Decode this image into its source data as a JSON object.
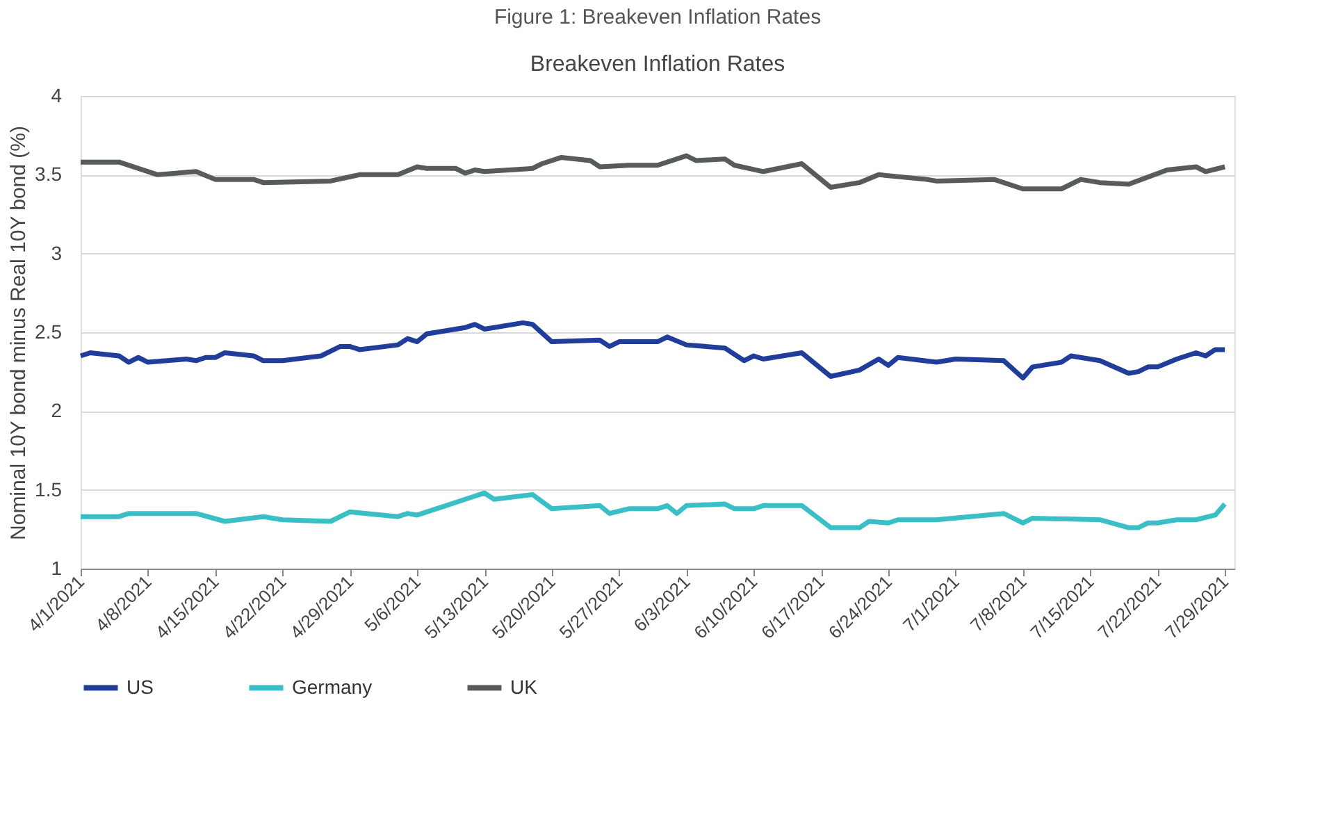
{
  "chart_data": {
    "type": "line",
    "title": "Figure 1: Breakeven Inflation Rates",
    "subtitle": "Breakeven Inflation Rates",
    "ylabel": "Nominal 10Y bond minus Real 10Y bond (%)",
    "ylim": [
      1,
      4
    ],
    "yticks": [
      1,
      1.5,
      2,
      2.5,
      3,
      3.5,
      4
    ],
    "xlim": [
      "2021-04-01",
      "2021-07-30"
    ],
    "xticks": [
      {
        "value": "2021-04-01",
        "label": "4/1/2021"
      },
      {
        "value": "2021-04-08",
        "label": "4/8/2021"
      },
      {
        "value": "2021-04-15",
        "label": "4/15/2021"
      },
      {
        "value": "2021-04-22",
        "label": "4/22/2021"
      },
      {
        "value": "2021-04-29",
        "label": "4/29/2021"
      },
      {
        "value": "2021-05-06",
        "label": "5/6/2021"
      },
      {
        "value": "2021-05-13",
        "label": "5/13/2021"
      },
      {
        "value": "2021-05-20",
        "label": "5/20/2021"
      },
      {
        "value": "2021-05-27",
        "label": "5/27/2021"
      },
      {
        "value": "2021-06-03",
        "label": "6/3/2021"
      },
      {
        "value": "2021-06-10",
        "label": "6/10/2021"
      },
      {
        "value": "2021-06-17",
        "label": "6/17/2021"
      },
      {
        "value": "2021-06-24",
        "label": "6/24/2021"
      },
      {
        "value": "2021-07-01",
        "label": "7/1/2021"
      },
      {
        "value": "2021-07-08",
        "label": "7/8/2021"
      },
      {
        "value": "2021-07-15",
        "label": "7/15/2021"
      },
      {
        "value": "2021-07-22",
        "label": "7/22/2021"
      },
      {
        "value": "2021-07-29",
        "label": "7/29/2021"
      }
    ],
    "grid": "y",
    "legend": "bottom",
    "line_style": "solid",
    "marker": "none",
    "series": [
      {
        "name": "US",
        "color": "#1f3d99",
        "x": [
          "2021-04-01",
          "2021-04-02",
          "2021-04-05",
          "2021-04-06",
          "2021-04-07",
          "2021-04-08",
          "2021-04-12",
          "2021-04-13",
          "2021-04-14",
          "2021-04-15",
          "2021-04-16",
          "2021-04-19",
          "2021-04-20",
          "2021-04-22",
          "2021-04-26",
          "2021-04-28",
          "2021-04-29",
          "2021-04-30",
          "2021-05-04",
          "2021-05-05",
          "2021-05-06",
          "2021-05-07",
          "2021-05-11",
          "2021-05-12",
          "2021-05-13",
          "2021-05-17",
          "2021-05-18",
          "2021-05-20",
          "2021-05-25",
          "2021-05-26",
          "2021-05-27",
          "2021-05-31",
          "2021-06-01",
          "2021-06-03",
          "2021-06-07",
          "2021-06-09",
          "2021-06-10",
          "2021-06-11",
          "2021-06-15",
          "2021-06-18",
          "2021-06-21",
          "2021-06-23",
          "2021-06-24",
          "2021-06-25",
          "2021-06-29",
          "2021-07-01",
          "2021-07-06",
          "2021-07-08",
          "2021-07-09",
          "2021-07-12",
          "2021-07-13",
          "2021-07-16",
          "2021-07-19",
          "2021-07-20",
          "2021-07-21",
          "2021-07-22",
          "2021-07-24",
          "2021-07-26",
          "2021-07-27",
          "2021-07-28",
          "2021-07-29"
        ],
        "values": [
          2.35,
          2.37,
          2.35,
          2.31,
          2.34,
          2.31,
          2.33,
          2.32,
          2.34,
          2.34,
          2.37,
          2.35,
          2.32,
          2.32,
          2.35,
          2.41,
          2.41,
          2.39,
          2.42,
          2.46,
          2.44,
          2.49,
          2.53,
          2.55,
          2.52,
          2.56,
          2.55,
          2.44,
          2.45,
          2.41,
          2.44,
          2.44,
          2.47,
          2.42,
          2.4,
          2.32,
          2.35,
          2.33,
          2.37,
          2.22,
          2.26,
          2.33,
          2.29,
          2.34,
          2.31,
          2.33,
          2.32,
          2.21,
          2.28,
          2.31,
          2.35,
          2.32,
          2.24,
          2.25,
          2.28,
          2.28,
          2.33,
          2.37,
          2.35,
          2.39,
          2.39
        ]
      },
      {
        "name": "Germany",
        "color": "#3bbfc6",
        "x": [
          "2021-04-01",
          "2021-04-05",
          "2021-04-06",
          "2021-04-13",
          "2021-04-16",
          "2021-04-20",
          "2021-04-22",
          "2021-04-27",
          "2021-04-29",
          "2021-05-04",
          "2021-05-05",
          "2021-05-06",
          "2021-05-08",
          "2021-05-11",
          "2021-05-13",
          "2021-05-14",
          "2021-05-18",
          "2021-05-20",
          "2021-05-25",
          "2021-05-26",
          "2021-05-28",
          "2021-05-31",
          "2021-06-01",
          "2021-06-02",
          "2021-06-03",
          "2021-06-07",
          "2021-06-08",
          "2021-06-10",
          "2021-06-11",
          "2021-06-15",
          "2021-06-18",
          "2021-06-21",
          "2021-06-22",
          "2021-06-24",
          "2021-06-25",
          "2021-06-29",
          "2021-07-06",
          "2021-07-08",
          "2021-07-09",
          "2021-07-16",
          "2021-07-19",
          "2021-07-20",
          "2021-07-21",
          "2021-07-22",
          "2021-07-24",
          "2021-07-26",
          "2021-07-28",
          "2021-07-29"
        ],
        "values": [
          1.33,
          1.33,
          1.35,
          1.35,
          1.3,
          1.33,
          1.31,
          1.3,
          1.36,
          1.33,
          1.35,
          1.34,
          1.38,
          1.44,
          1.48,
          1.44,
          1.47,
          1.38,
          1.4,
          1.35,
          1.38,
          1.38,
          1.4,
          1.35,
          1.4,
          1.41,
          1.38,
          1.38,
          1.4,
          1.4,
          1.26,
          1.26,
          1.3,
          1.29,
          1.31,
          1.31,
          1.35,
          1.29,
          1.32,
          1.31,
          1.26,
          1.26,
          1.29,
          1.29,
          1.31,
          1.31,
          1.34,
          1.41
        ]
      },
      {
        "name": "UK",
        "color": "#575b5e",
        "x": [
          "2021-04-01",
          "2021-04-05",
          "2021-04-09",
          "2021-04-13",
          "2021-04-15",
          "2021-04-19",
          "2021-04-20",
          "2021-04-27",
          "2021-04-30",
          "2021-05-04",
          "2021-05-06",
          "2021-05-07",
          "2021-05-10",
          "2021-05-11",
          "2021-05-12",
          "2021-05-13",
          "2021-05-18",
          "2021-05-19",
          "2021-05-21",
          "2021-05-24",
          "2021-05-25",
          "2021-05-28",
          "2021-05-29",
          "2021-05-31",
          "2021-06-03",
          "2021-06-04",
          "2021-06-07",
          "2021-06-08",
          "2021-06-11",
          "2021-06-15",
          "2021-06-18",
          "2021-06-21",
          "2021-06-23",
          "2021-06-28",
          "2021-06-29",
          "2021-07-05",
          "2021-07-08",
          "2021-07-12",
          "2021-07-14",
          "2021-07-16",
          "2021-07-19",
          "2021-07-23",
          "2021-07-26",
          "2021-07-27",
          "2021-07-29"
        ],
        "values": [
          3.58,
          3.58,
          3.5,
          3.52,
          3.47,
          3.47,
          3.45,
          3.46,
          3.5,
          3.5,
          3.55,
          3.54,
          3.54,
          3.51,
          3.53,
          3.52,
          3.54,
          3.57,
          3.61,
          3.59,
          3.55,
          3.56,
          3.56,
          3.56,
          3.62,
          3.59,
          3.6,
          3.56,
          3.52,
          3.57,
          3.42,
          3.45,
          3.5,
          3.47,
          3.46,
          3.47,
          3.41,
          3.41,
          3.47,
          3.45,
          3.44,
          3.53,
          3.55,
          3.52,
          3.55
        ]
      }
    ]
  }
}
